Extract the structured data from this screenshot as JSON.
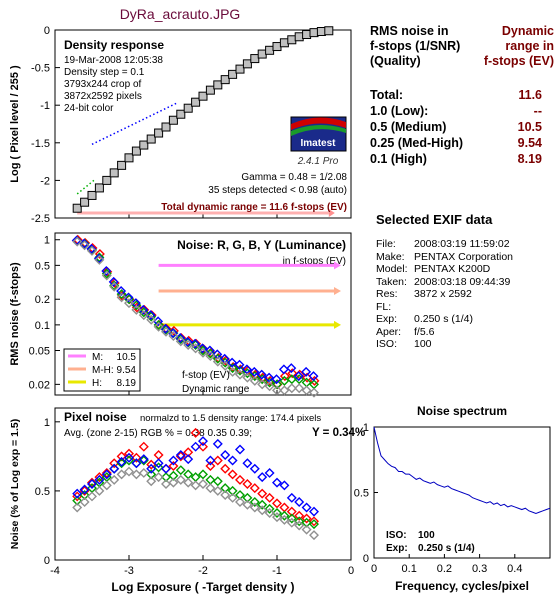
{
  "header": {
    "title": "DyRa_acrauto.JPG"
  },
  "summary": {
    "left_heading": [
      "RMS noise in",
      "f-stops (1/SNR)",
      "(Quality)"
    ],
    "right_heading": [
      "Dynamic",
      "range in",
      "f-stops (EV)"
    ],
    "rows": [
      {
        "label": "Total:",
        "value": "11.6"
      },
      {
        "label": "1.0   (Low):",
        "value": "--"
      },
      {
        "label": "0.5   (Medium)",
        "value": "10.5"
      },
      {
        "label": "0.25 (Med-High)",
        "value": "9.54"
      },
      {
        "label": "0.1   (High)",
        "value": "8.19"
      }
    ]
  },
  "exif": {
    "heading": "Selected EXIF data",
    "items": [
      {
        "k": "File:",
        "v": "2008:03:19 11:59:02"
      },
      {
        "k": "Make:",
        "v": "PENTAX Corporation"
      },
      {
        "k": "Model:",
        "v": "PENTAX K200D"
      },
      {
        "k": "Taken:",
        "v": "2008:03:18 09:44:39"
      },
      {
        "k": "Res:",
        "v": "3872 x 2592"
      },
      {
        "k": "FL:",
        "v": ""
      },
      {
        "k": "Exp:",
        "v": "0.250 s  (1/4)"
      },
      {
        "k": "Aper:",
        "v": "f/5.6"
      },
      {
        "k": "ISO:",
        "v": "100"
      }
    ]
  },
  "colors": {
    "frame": "#000000",
    "density": "#c0c0c0",
    "red": "#ff0000",
    "green": "#00a000",
    "blue": "#0000ff",
    "gray": "#909090",
    "level_m": "#ff80ff",
    "level_mh": "#ffb090",
    "level_h": "#e8e800",
    "accent": "#7a0000"
  },
  "chart_data": [
    {
      "type": "scatter",
      "title": "Density response",
      "ylabel": "Log ( Pixel level / 255 )",
      "xlim": [
        -4,
        0
      ],
      "ylim": [
        -2.5,
        0
      ],
      "xticks": [
        "-4",
        "-3",
        "-2",
        "-1",
        "0"
      ],
      "yticks": [
        "0",
        "-0.5",
        "-1",
        "-1.5",
        "-2",
        "-2.5"
      ],
      "info_lines": [
        "19-Mar-2008 12:05:38",
        "Density step = 0.1",
        "3793x244 crop of",
        "3872x2592 pixels",
        "24-bit color"
      ],
      "logo": {
        "name": "Imatest",
        "version": "2.4.1  Pro"
      },
      "gamma_text": "Gamma = 0.48 = 1/2.08",
      "steps_text": "35 steps detected < 0.98 (auto)",
      "total_text": "Total dynamic range = 11.6 f-stops (EV)",
      "points": [
        {
          "x": -3.7,
          "y": -2.37
        },
        {
          "x": -3.6,
          "y": -2.29
        },
        {
          "x": -3.5,
          "y": -2.2
        },
        {
          "x": -3.4,
          "y": -2.1
        },
        {
          "x": -3.3,
          "y": -2.0
        },
        {
          "x": -3.2,
          "y": -1.9
        },
        {
          "x": -3.1,
          "y": -1.8
        },
        {
          "x": -3.0,
          "y": -1.7
        },
        {
          "x": -2.9,
          "y": -1.61
        },
        {
          "x": -2.8,
          "y": -1.53
        },
        {
          "x": -2.7,
          "y": -1.45
        },
        {
          "x": -2.6,
          "y": -1.37
        },
        {
          "x": -2.5,
          "y": -1.29
        },
        {
          "x": -2.4,
          "y": -1.2
        },
        {
          "x": -2.3,
          "y": -1.12
        },
        {
          "x": -2.2,
          "y": -1.04
        },
        {
          "x": -2.1,
          "y": -0.96
        },
        {
          "x": -2.0,
          "y": -0.88
        },
        {
          "x": -1.9,
          "y": -0.8
        },
        {
          "x": -1.8,
          "y": -0.73
        },
        {
          "x": -1.7,
          "y": -0.66
        },
        {
          "x": -1.6,
          "y": -0.59
        },
        {
          "x": -1.5,
          "y": -0.52
        },
        {
          "x": -1.4,
          "y": -0.45
        },
        {
          "x": -1.3,
          "y": -0.38
        },
        {
          "x": -1.2,
          "y": -0.32
        },
        {
          "x": -1.1,
          "y": -0.27
        },
        {
          "x": -1.0,
          "y": -0.22
        },
        {
          "x": -0.9,
          "y": -0.17
        },
        {
          "x": -0.8,
          "y": -0.13
        },
        {
          "x": -0.7,
          "y": -0.09
        },
        {
          "x": -0.6,
          "y": -0.06
        },
        {
          "x": -0.5,
          "y": -0.035
        },
        {
          "x": -0.4,
          "y": -0.02
        },
        {
          "x": -0.3,
          "y": -0.01
        }
      ],
      "gamma_fit": [
        {
          "x": -3.5,
          "y": -1.52
        },
        {
          "x": -2.35,
          "y": -0.97
        }
      ],
      "dynamic_range": [
        -3.7,
        -0.3
      ]
    },
    {
      "type": "scatter",
      "title": "Noise: R, G, B, Y (Luminance)",
      "subtitle": "in f-stops (EV)",
      "ylabel": "RMS noise (f-stops)",
      "yscale": "log",
      "ylim": [
        0.015,
        1.2
      ],
      "xlim": [
        -4,
        0
      ],
      "yticks": [
        "1",
        "0.5",
        "0.2",
        "0.1",
        "0.05",
        "0.02"
      ],
      "levels": [
        {
          "name": "M:",
          "noise": 0.5,
          "range": "10.5"
        },
        {
          "name": "M-H:",
          "noise": 0.25,
          "range": "9.54"
        },
        {
          "name": "H:",
          "noise": 0.1,
          "range": "8.19"
        }
      ],
      "level_xstart": -2.6,
      "annotation": [
        "f-stop (EV)",
        "Dynamic range"
      ],
      "series": [
        {
          "name": "R",
          "values": [
            1.0,
            0.92,
            0.8,
            0.68,
            0.42,
            0.31,
            0.22,
            0.2,
            0.16,
            0.15,
            0.13,
            0.1,
            0.09,
            0.085,
            0.07,
            0.065,
            0.06,
            0.052,
            0.047,
            0.041,
            0.038,
            0.032,
            0.03,
            0.029,
            0.026,
            0.024,
            0.022,
            0.02,
            0.025,
            0.027,
            0.026,
            0.024,
            0.022
          ]
        },
        {
          "name": "G",
          "values": [
            0.97,
            0.9,
            0.76,
            0.62,
            0.4,
            0.29,
            0.23,
            0.2,
            0.17,
            0.14,
            0.125,
            0.1,
            0.088,
            0.08,
            0.068,
            0.062,
            0.058,
            0.05,
            0.046,
            0.04,
            0.036,
            0.031,
            0.029,
            0.027,
            0.025,
            0.023,
            0.021,
            0.02,
            0.022,
            0.023,
            0.023,
            0.021,
            0.02
          ]
        },
        {
          "name": "B",
          "values": [
            0.98,
            0.9,
            0.78,
            0.6,
            0.43,
            0.32,
            0.25,
            0.21,
            0.18,
            0.15,
            0.13,
            0.11,
            0.09,
            0.08,
            0.07,
            0.063,
            0.06,
            0.053,
            0.05,
            0.045,
            0.04,
            0.036,
            0.034,
            0.03,
            0.028,
            0.026,
            0.024,
            0.023,
            0.03,
            0.031,
            0.025,
            0.028,
            0.025
          ]
        },
        {
          "name": "Y",
          "values": [
            0.95,
            0.86,
            0.74,
            0.58,
            0.38,
            0.28,
            0.21,
            0.18,
            0.15,
            0.13,
            0.115,
            0.095,
            0.083,
            0.074,
            0.064,
            0.058,
            0.053,
            0.047,
            0.043,
            0.037,
            0.033,
            0.028,
            0.026,
            0.024,
            0.022,
            0.02,
            0.019,
            0.017,
            0.017,
            0.018,
            0.018,
            0.017,
            0.016
          ]
        }
      ]
    },
    {
      "type": "scatter",
      "title": "Pixel noise",
      "title_note": "normalzd to 1.5 density range: 174.4 pixels",
      "avg_text": "Avg. (zone 2-15) RGB % = 0.38  0.35  0.39;",
      "y_text": "Y = 0.34%",
      "ylabel": "Noise (% of Log exp = 1.5)",
      "xlabel": "Log Exposure ( -Target density )",
      "xlim": [
        -4,
        0
      ],
      "ylim": [
        0,
        1.1
      ],
      "xticks": [
        "-4",
        "-3",
        "-2",
        "-1",
        "0"
      ],
      "yticks": [
        "1",
        "0.5",
        "0"
      ],
      "series": [
        {
          "name": "R",
          "values": [
            0.46,
            0.5,
            0.56,
            0.6,
            0.63,
            0.7,
            0.75,
            0.77,
            0.74,
            0.82,
            0.69,
            0.76,
            0.66,
            0.68,
            0.75,
            0.78,
            0.92,
            0.82,
            0.68,
            0.72,
            0.66,
            0.62,
            0.58,
            0.55,
            0.52,
            0.48,
            0.45,
            0.41,
            0.38,
            0.35,
            0.32,
            0.3,
            0.28
          ]
        },
        {
          "name": "G",
          "values": [
            0.43,
            0.47,
            0.52,
            0.56,
            0.6,
            0.66,
            0.7,
            0.72,
            0.7,
            0.72,
            0.62,
            0.67,
            0.6,
            0.61,
            0.65,
            0.62,
            0.6,
            0.62,
            0.58,
            0.57,
            0.52,
            0.5,
            0.47,
            0.45,
            0.42,
            0.4,
            0.37,
            0.34,
            0.32,
            0.3,
            0.28,
            0.27,
            0.26
          ]
        },
        {
          "name": "B",
          "values": [
            0.48,
            0.51,
            0.55,
            0.58,
            0.62,
            0.66,
            0.71,
            0.74,
            0.7,
            0.73,
            0.66,
            0.7,
            0.66,
            0.72,
            0.76,
            0.73,
            0.82,
            0.86,
            0.72,
            0.84,
            0.76,
            0.72,
            0.8,
            0.7,
            0.66,
            0.6,
            0.63,
            0.56,
            0.54,
            0.45,
            0.42,
            0.38,
            0.35
          ]
        },
        {
          "name": "Y",
          "values": [
            0.38,
            0.42,
            0.46,
            0.5,
            0.54,
            0.58,
            0.62,
            0.64,
            0.62,
            0.63,
            0.57,
            0.6,
            0.55,
            0.56,
            0.58,
            0.56,
            0.54,
            0.55,
            0.52,
            0.5,
            0.47,
            0.45,
            0.42,
            0.4,
            0.38,
            0.36,
            0.34,
            0.31,
            0.29,
            0.27,
            0.25,
            0.22,
            0.18
          ]
        }
      ]
    },
    {
      "type": "line",
      "title": "Noise spectrum",
      "xlabel": "Frequency, cycles/pixel",
      "xlim": [
        0,
        0.5
      ],
      "ylim": [
        0,
        1
      ],
      "xticks": [
        "0",
        "0.1",
        "0.2",
        "0.3",
        "0.4"
      ],
      "yticks": [
        "1",
        "0.5",
        "0"
      ],
      "iso_label": "ISO:",
      "iso_value": "100",
      "exp_label": "Exp:",
      "exp_value": "0.250 s  (1/4)",
      "x": [
        0,
        0.01,
        0.02,
        0.03,
        0.04,
        0.05,
        0.06,
        0.07,
        0.08,
        0.09,
        0.1,
        0.11,
        0.12,
        0.13,
        0.14,
        0.15,
        0.16,
        0.17,
        0.18,
        0.19,
        0.2,
        0.21,
        0.22,
        0.23,
        0.24,
        0.25,
        0.26,
        0.27,
        0.28,
        0.29,
        0.3,
        0.31,
        0.32,
        0.33,
        0.34,
        0.35,
        0.36,
        0.37,
        0.38,
        0.39,
        0.4,
        0.41,
        0.42,
        0.43,
        0.44,
        0.45,
        0.46,
        0.47,
        0.48,
        0.49,
        0.5
      ],
      "y": [
        1.0,
        0.88,
        0.78,
        0.75,
        0.72,
        0.7,
        0.69,
        0.66,
        0.66,
        0.64,
        0.64,
        0.62,
        0.6,
        0.61,
        0.59,
        0.58,
        0.57,
        0.58,
        0.56,
        0.55,
        0.54,
        0.55,
        0.53,
        0.52,
        0.51,
        0.5,
        0.49,
        0.48,
        0.46,
        0.45,
        0.44,
        0.43,
        0.42,
        0.43,
        0.41,
        0.42,
        0.4,
        0.41,
        0.39,
        0.4,
        0.39,
        0.38,
        0.37,
        0.38,
        0.36,
        0.35,
        0.34,
        0.35,
        0.36,
        0.37,
        0.38
      ]
    }
  ]
}
